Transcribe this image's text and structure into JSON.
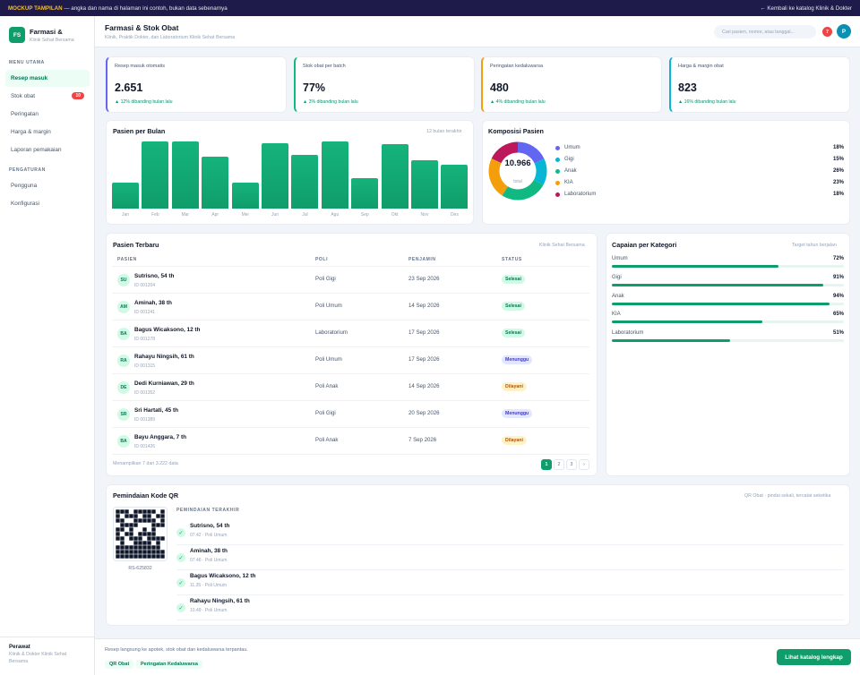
{
  "topbar": {
    "tag": "MOCKUP TAMPILAN",
    "note": "— angka dan nama di halaman ini contoh, bukan data sebenarnya",
    "back_link": "← Kembali ke katalog Klinik & Dokter"
  },
  "sidebar": {
    "logo": "FS",
    "title": "Farmasi &",
    "subtitle": "Klinik Sehat Bersama",
    "section_main": "MENU UTAMA",
    "items_main": [
      {
        "label": "Resep masuk",
        "active": true
      },
      {
        "label": "Stok obat",
        "badge": "10"
      },
      {
        "label": "Peringatan"
      },
      {
        "label": "Harga & margin"
      },
      {
        "label": "Laporan pemakaian"
      }
    ],
    "section_settings": "PENGATURAN",
    "items_settings": [
      {
        "label": "Pengguna"
      },
      {
        "label": "Konfigurasi"
      }
    ],
    "footer_name": "Perawat",
    "footer_org": "Klinik & Dokter Klinik Sehat Bersama"
  },
  "header": {
    "title": "Farmasi & Stok Obat",
    "subtitle": "Klinik, Praktik Dokter, dan Laboratorium Klinik Sehat Bersama",
    "search_placeholder": "Cari pasien, nomor, atau tanggal...",
    "notif_count": "7",
    "avatar": "P"
  },
  "stats": [
    {
      "label": "Resep masuk otomatis",
      "value": "2.651",
      "delta": "▲ 12% dibanding bulan lalu",
      "color": "#6366f1"
    },
    {
      "label": "Stok obat per batch",
      "value": "77%",
      "delta": "▲ 3% dibanding bulan lalu",
      "color": "#10b981"
    },
    {
      "label": "Peringatan kedaluwarsa",
      "value": "480",
      "delta": "▲ 4% dibanding bulan lalu",
      "color": "#f59e0b"
    },
    {
      "label": "Harga & margin obat",
      "value": "823",
      "delta": "▲ 16% dibanding bulan lalu",
      "color": "#06b6d4"
    }
  ],
  "monthly": {
    "title": "Pasien per Bulan",
    "note": "12 bulan terakhir",
    "chart_data": {
      "type": "bar",
      "categories": [
        "Jan",
        "Feb",
        "Mar",
        "Apr",
        "Mei",
        "Jun",
        "Jul",
        "Agu",
        "Sep",
        "Okt",
        "Nov",
        "Des"
      ],
      "values": [
        39,
        100,
        100,
        77,
        39,
        97,
        80,
        100,
        46,
        96,
        72,
        65
      ],
      "ylim": [
        0,
        100
      ],
      "grid": false
    }
  },
  "composition": {
    "title": "Komposisi Pasien",
    "total": "10.966",
    "total_label": "total",
    "chart_data": {
      "type": "pie",
      "categories": [
        "Umum",
        "Gigi",
        "Anak",
        "KIA",
        "Laboratorium"
      ],
      "values": [
        18,
        15,
        26,
        23,
        18
      ],
      "labels": [
        "18%",
        "15%",
        "26%",
        "23%",
        "18%"
      ],
      "colors": [
        "#6366f1",
        "#06b6d4",
        "#10b981",
        "#f59e0b",
        "#be185d"
      ]
    }
  },
  "patients": {
    "title": "Pasien Terbaru",
    "note": "Klinik Sehat Bersama",
    "columns": [
      "PASIEN",
      "POLI",
      "PENJAMIN",
      "STATUS"
    ],
    "rows": [
      {
        "initials": "SU",
        "name": "Sutrisno, 54 th",
        "id": "ID 001204",
        "poli": "Poli Gigi",
        "date": "23 Sep 2026",
        "status": "Selesai",
        "kind": "selesai"
      },
      {
        "initials": "AM",
        "name": "Aminah, 38 th",
        "id": "ID 001241",
        "poli": "Poli Umum",
        "date": "14 Sep 2026",
        "status": "Selesai",
        "kind": "selesai"
      },
      {
        "initials": "BA",
        "name": "Bagus Wicaksono, 12 th",
        "id": "ID 001278",
        "poli": "Laboratorium",
        "date": "17 Sep 2026",
        "status": "Selesai",
        "kind": "selesai"
      },
      {
        "initials": "RA",
        "name": "Rahayu Ningsih, 61 th",
        "id": "ID 001315",
        "poli": "Poli Umum",
        "date": "17 Sep 2026",
        "status": "Menunggu",
        "kind": "menunggu"
      },
      {
        "initials": "DE",
        "name": "Dedi Kurniawan, 29 th",
        "id": "ID 001352",
        "poli": "Poli Anak",
        "date": "14 Sep 2026",
        "status": "Dilayani",
        "kind": "dilayani"
      },
      {
        "initials": "SR",
        "name": "Sri Hartati, 45 th",
        "id": "ID 001389",
        "poli": "Poli Gigi",
        "date": "20 Sep 2026",
        "status": "Menunggu",
        "kind": "menunggu"
      },
      {
        "initials": "BA",
        "name": "Bayu Anggara, 7 th",
        "id": "ID 001426",
        "poli": "Poli Anak",
        "date": "7 Sep 2026",
        "status": "Dilayani",
        "kind": "dilayani"
      }
    ],
    "footer": "Menampilkan 7 dari 3.222 data",
    "pages": [
      "1",
      "2",
      "3",
      "›"
    ]
  },
  "targets": {
    "title": "Capaian per Kategori",
    "note": "Target tahun berjalan",
    "items": [
      {
        "label": "Umum",
        "pct": "72%",
        "value": 72
      },
      {
        "label": "Gigi",
        "pct": "91%",
        "value": 91
      },
      {
        "label": "Anak",
        "pct": "94%",
        "value": 94
      },
      {
        "label": "KIA",
        "pct": "65%",
        "value": 65
      },
      {
        "label": "Laboratorium",
        "pct": "51%",
        "value": 51
      }
    ]
  },
  "qr": {
    "title": "Pemindaian Kode QR",
    "note": "QR Obat · pindai sekali, tercatat seketika",
    "code": "RS-625832",
    "recent_label": "PEMINDAIAN TERAKHIR",
    "items": [
      {
        "name": "Sutrisno, 54 th",
        "meta": "07.42 · Poli Umum"
      },
      {
        "name": "Aminah, 38 th",
        "meta": "07.46 · Poli Umum"
      },
      {
        "name": "Bagus Wicaksono, 12 th",
        "meta": "11.35 · Poli Umum"
      },
      {
        "name": "Rahayu Ningsih, 61 th",
        "meta": "10.49 · Poli Umum"
      }
    ]
  },
  "footer": {
    "text": "Resep langsung ke apotek, stok obat dan kedaluwarsa terpantau.",
    "chips": [
      "QR Obat",
      "Peringatan Kedaluwarsa"
    ],
    "cta": "Lihat katalog lengkap"
  }
}
